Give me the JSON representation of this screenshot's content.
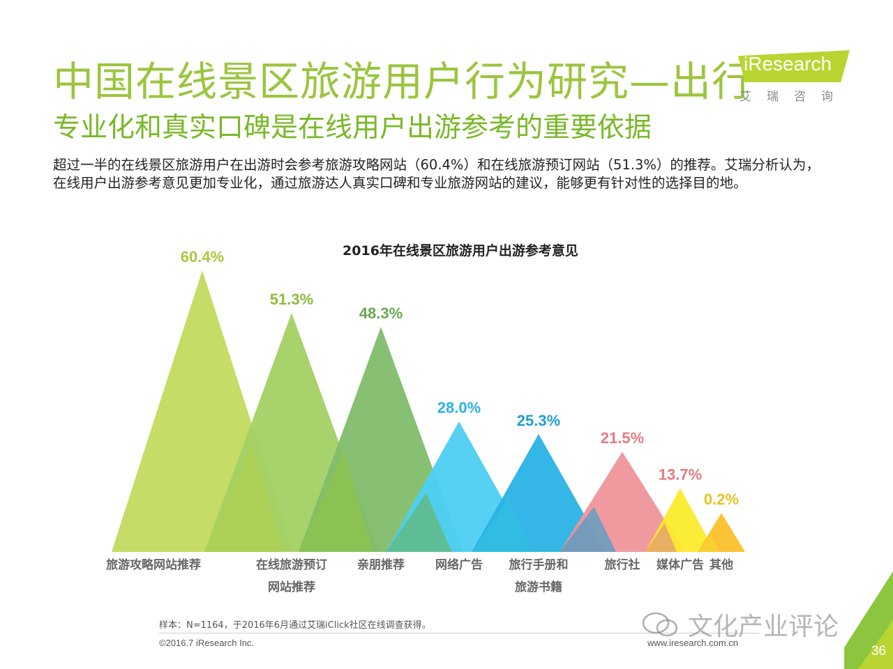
{
  "header": {
    "title": "中国在线景区旅游用户行为研究—出行",
    "subtitle": "专业化和真实口碑是在线用户出游参考的重要依据",
    "description": "超过一半的在线景区旅游用户在出游时会参考旅游攻略网站（60.4%）和在线旅游预订网站（51.3%）的推荐。艾瑞分析认为，在线用户出游参考意见更加专业化，通过旅游达人真实口碑和专业旅游网站的建议，能够更有针对性的选择目的地。"
  },
  "logo": {
    "name": "iResearch",
    "sub": "艾瑞咨询"
  },
  "chart_data": {
    "type": "bar",
    "title": "2016年在线景区旅游用户出游参考意见",
    "categories": [
      "旅游攻略网站推荐",
      "在线旅游预订网站推荐",
      "亲朋推荐",
      "网络广告",
      "旅行手册和旅游书籍",
      "旅行社",
      "媒体广告",
      "其他"
    ],
    "category_lines": [
      [
        "旅游攻略网站推荐"
      ],
      [
        "在线旅游预订",
        "网站推荐"
      ],
      [
        "亲朋推荐"
      ],
      [
        "网络广告"
      ],
      [
        "旅行手册和",
        "旅游书籍"
      ],
      [
        "旅行社"
      ],
      [
        "媒体广告"
      ],
      [
        "其他"
      ]
    ],
    "values": [
      60.4,
      51.3,
      48.3,
      28.0,
      25.3,
      21.5,
      13.7,
      0.2
    ],
    "value_labels": [
      "60.4%",
      "51.3%",
      "48.3%",
      "28.0%",
      "25.3%",
      "21.5%",
      "13.7%",
      "0.2%"
    ],
    "unit": "%",
    "colors": [
      "#c2da5e",
      "#a3d064",
      "#82bd6b",
      "#4dcff3",
      "#29b2e6",
      "#ef959a",
      "#fbeb2c",
      "#fbc02d"
    ],
    "label_colors": [
      "#a9c83a",
      "#8cbd3c",
      "#6aa84f",
      "#29b2e6",
      "#1f9fd6",
      "#e57a80",
      "#e57a80",
      "#e8c220"
    ],
    "shade_colors": [
      "#b3d14a",
      "#90c442",
      "#6cae4e",
      "#34c2e0",
      "#1aa0d4",
      "#d98089",
      "#f8d832",
      "#f5b227"
    ],
    "ylim": [
      0,
      60.4
    ]
  },
  "footer": {
    "note": "样本：N=1164，于2016年6月通过艾瑞iClick社区在线调查获得。",
    "copyright": "©2016.7 iResearch Inc.",
    "website": "www.iresearch.com.cn",
    "watermark": "文化产业评论",
    "page": "36"
  }
}
